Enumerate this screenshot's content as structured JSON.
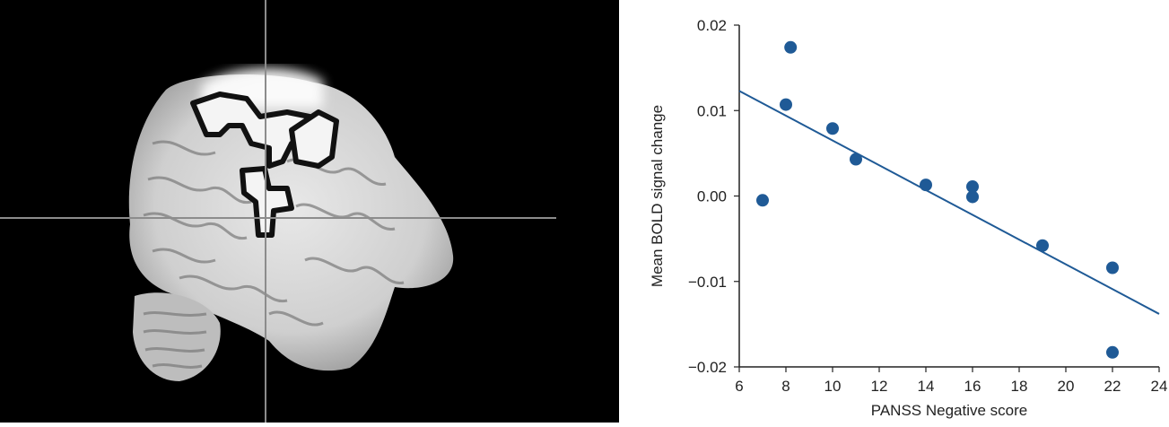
{
  "colors": {
    "background_left": "#000000",
    "marker": "#1f5a96",
    "fit_line": "#1f5a96",
    "axis": "#222222",
    "crosshair": "#8c8c8c"
  },
  "brain_image": {
    "description_icon": "sagittal-brain-mri-icon"
  },
  "chart_data": {
    "type": "scatter",
    "xlabel": "PANSS Negative score",
    "ylabel": "Mean BOLD signal change",
    "xlim": [
      6,
      24
    ],
    "ylim": [
      -0.02,
      0.02
    ],
    "xticks": [
      6,
      8,
      10,
      12,
      14,
      16,
      18,
      20,
      22,
      24
    ],
    "yticks": [
      0.02,
      0.01,
      0.0,
      -0.01,
      -0.02
    ],
    "ytick_labels": [
      "0.02",
      "0.01",
      "0.00",
      "−0.01",
      "−0.02"
    ],
    "points": [
      {
        "x": 7,
        "y": -0.0005
      },
      {
        "x": 8,
        "y": 0.0107
      },
      {
        "x": 8.2,
        "y": 0.0174
      },
      {
        "x": 10,
        "y": 0.0079
      },
      {
        "x": 11,
        "y": 0.0043
      },
      {
        "x": 14,
        "y": 0.0013
      },
      {
        "x": 16,
        "y": 0.0011
      },
      {
        "x": 16,
        "y": -0.0001
      },
      {
        "x": 19,
        "y": -0.0058
      },
      {
        "x": 22,
        "y": -0.0084
      },
      {
        "x": 22,
        "y": -0.0183
      }
    ],
    "fit_line": {
      "x": [
        6,
        24
      ],
      "y": [
        0.0123,
        -0.0138
      ]
    },
    "grid": false
  }
}
